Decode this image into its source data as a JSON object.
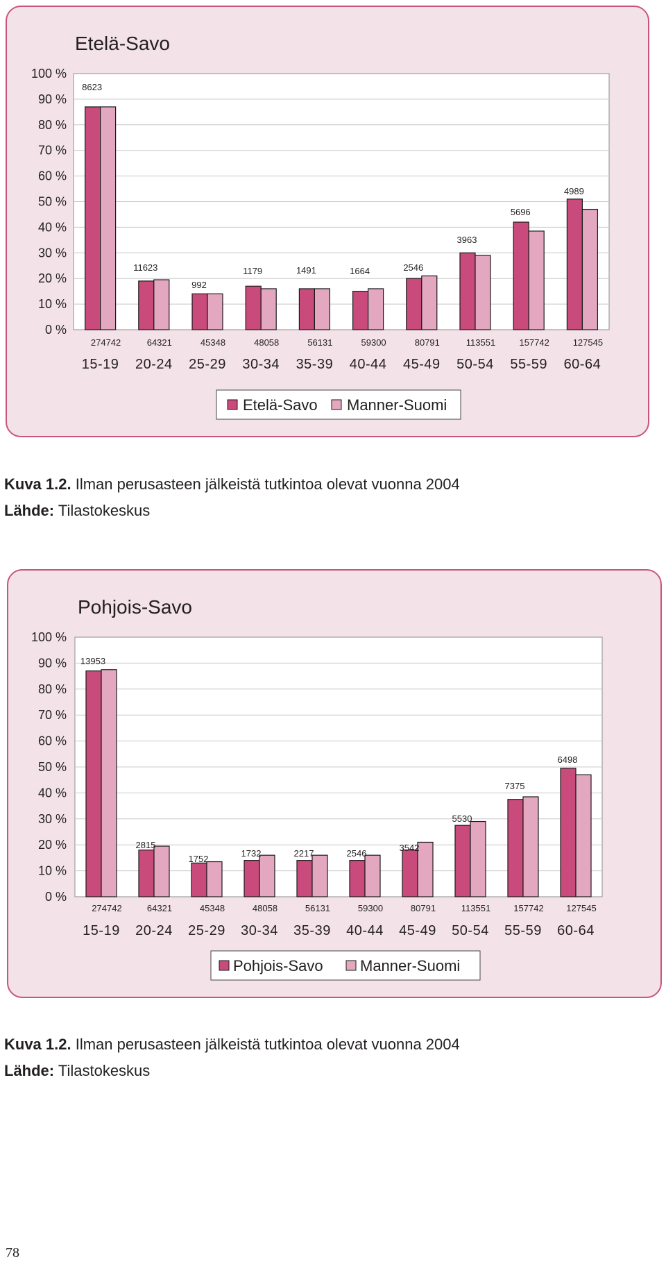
{
  "chart_data": [
    {
      "type": "bar",
      "title": "Etelä-Savo",
      "ylim": [
        0,
        100
      ],
      "yticks": [
        "0 %",
        "10 %",
        "20 %",
        "30 %",
        "40 %",
        "50 %",
        "60 %",
        "70 %",
        "80 %",
        "90 %",
        "100 %"
      ],
      "categories": [
        "15-19",
        "20-24",
        "25-29",
        "30-34",
        "35-39",
        "40-44",
        "45-49",
        "50-54",
        "55-59",
        "60-64"
      ],
      "series": [
        {
          "name": "Etelä-Savo",
          "color": "#c94b7c",
          "values": [
            87,
            19,
            14,
            17,
            16,
            15,
            20,
            30,
            42,
            51
          ]
        },
        {
          "name": "Manner-Suomi",
          "color": "#e3a8bf",
          "values": [
            87,
            19.5,
            14,
            16,
            16,
            16,
            21,
            29,
            38.5,
            47
          ]
        }
      ],
      "bar_labels": [
        "8623",
        "11623",
        "992",
        "1179",
        "1491",
        "1664",
        "2546",
        "3963",
        "5696",
        "4989"
      ],
      "population_labels": [
        "274742",
        "64321",
        "45348",
        "48058",
        "56131",
        "59300",
        "80791",
        "113551",
        "157742",
        "127545"
      ],
      "grid": true,
      "legend_position": "bottom"
    },
    {
      "type": "bar",
      "title": "Pohjois-Savo",
      "ylim": [
        0,
        100
      ],
      "yticks": [
        "0 %",
        "10 %",
        "20 %",
        "30 %",
        "40 %",
        "50 %",
        "60 %",
        "70 %",
        "80 %",
        "90 %",
        "100 %"
      ],
      "categories": [
        "15-19",
        "20-24",
        "25-29",
        "30-34",
        "35-39",
        "40-44",
        "45-49",
        "50-54",
        "55-59",
        "60-64"
      ],
      "series": [
        {
          "name": "Pohjois-Savo",
          "color": "#c94b7c",
          "values": [
            87,
            18,
            13,
            14,
            14,
            14,
            18,
            27.5,
            37.5,
            49.5
          ]
        },
        {
          "name": "Manner-Suomi",
          "color": "#e3a8bf",
          "values": [
            87.5,
            19.5,
            13.5,
            16,
            16,
            16,
            21,
            29,
            38.5,
            47
          ]
        }
      ],
      "bar_labels": [
        "13953",
        "2815",
        "1752",
        "1732",
        "2217",
        "2546",
        "3542",
        "5530",
        "7375",
        "6498"
      ],
      "population_labels": [
        "274742",
        "64321",
        "45348",
        "48058",
        "56131",
        "59300",
        "80791",
        "113551",
        "157742",
        "127545"
      ],
      "grid": true,
      "legend_position": "bottom"
    }
  ],
  "captions": [
    {
      "figure_label": "Kuva 1.2.",
      "text": " Ilman perusasteen jälkeistä tutkintoa olevat vuonna 2004",
      "source_label": "Lähde:",
      "source": " Tilastokeskus"
    },
    {
      "figure_label": "Kuva 1.2.",
      "text": " Ilman perusasteen jälkeistä tutkintoa olevat vuonna 2004",
      "source_label": "Lähde:",
      "source": " Tilastokeskus"
    }
  ],
  "page_number": "78",
  "colors": {
    "panel_bg": "#f3e2e8",
    "panel_border": "#c9547e",
    "series_dark": "#c94b7c",
    "series_light": "#e3a8bf"
  }
}
